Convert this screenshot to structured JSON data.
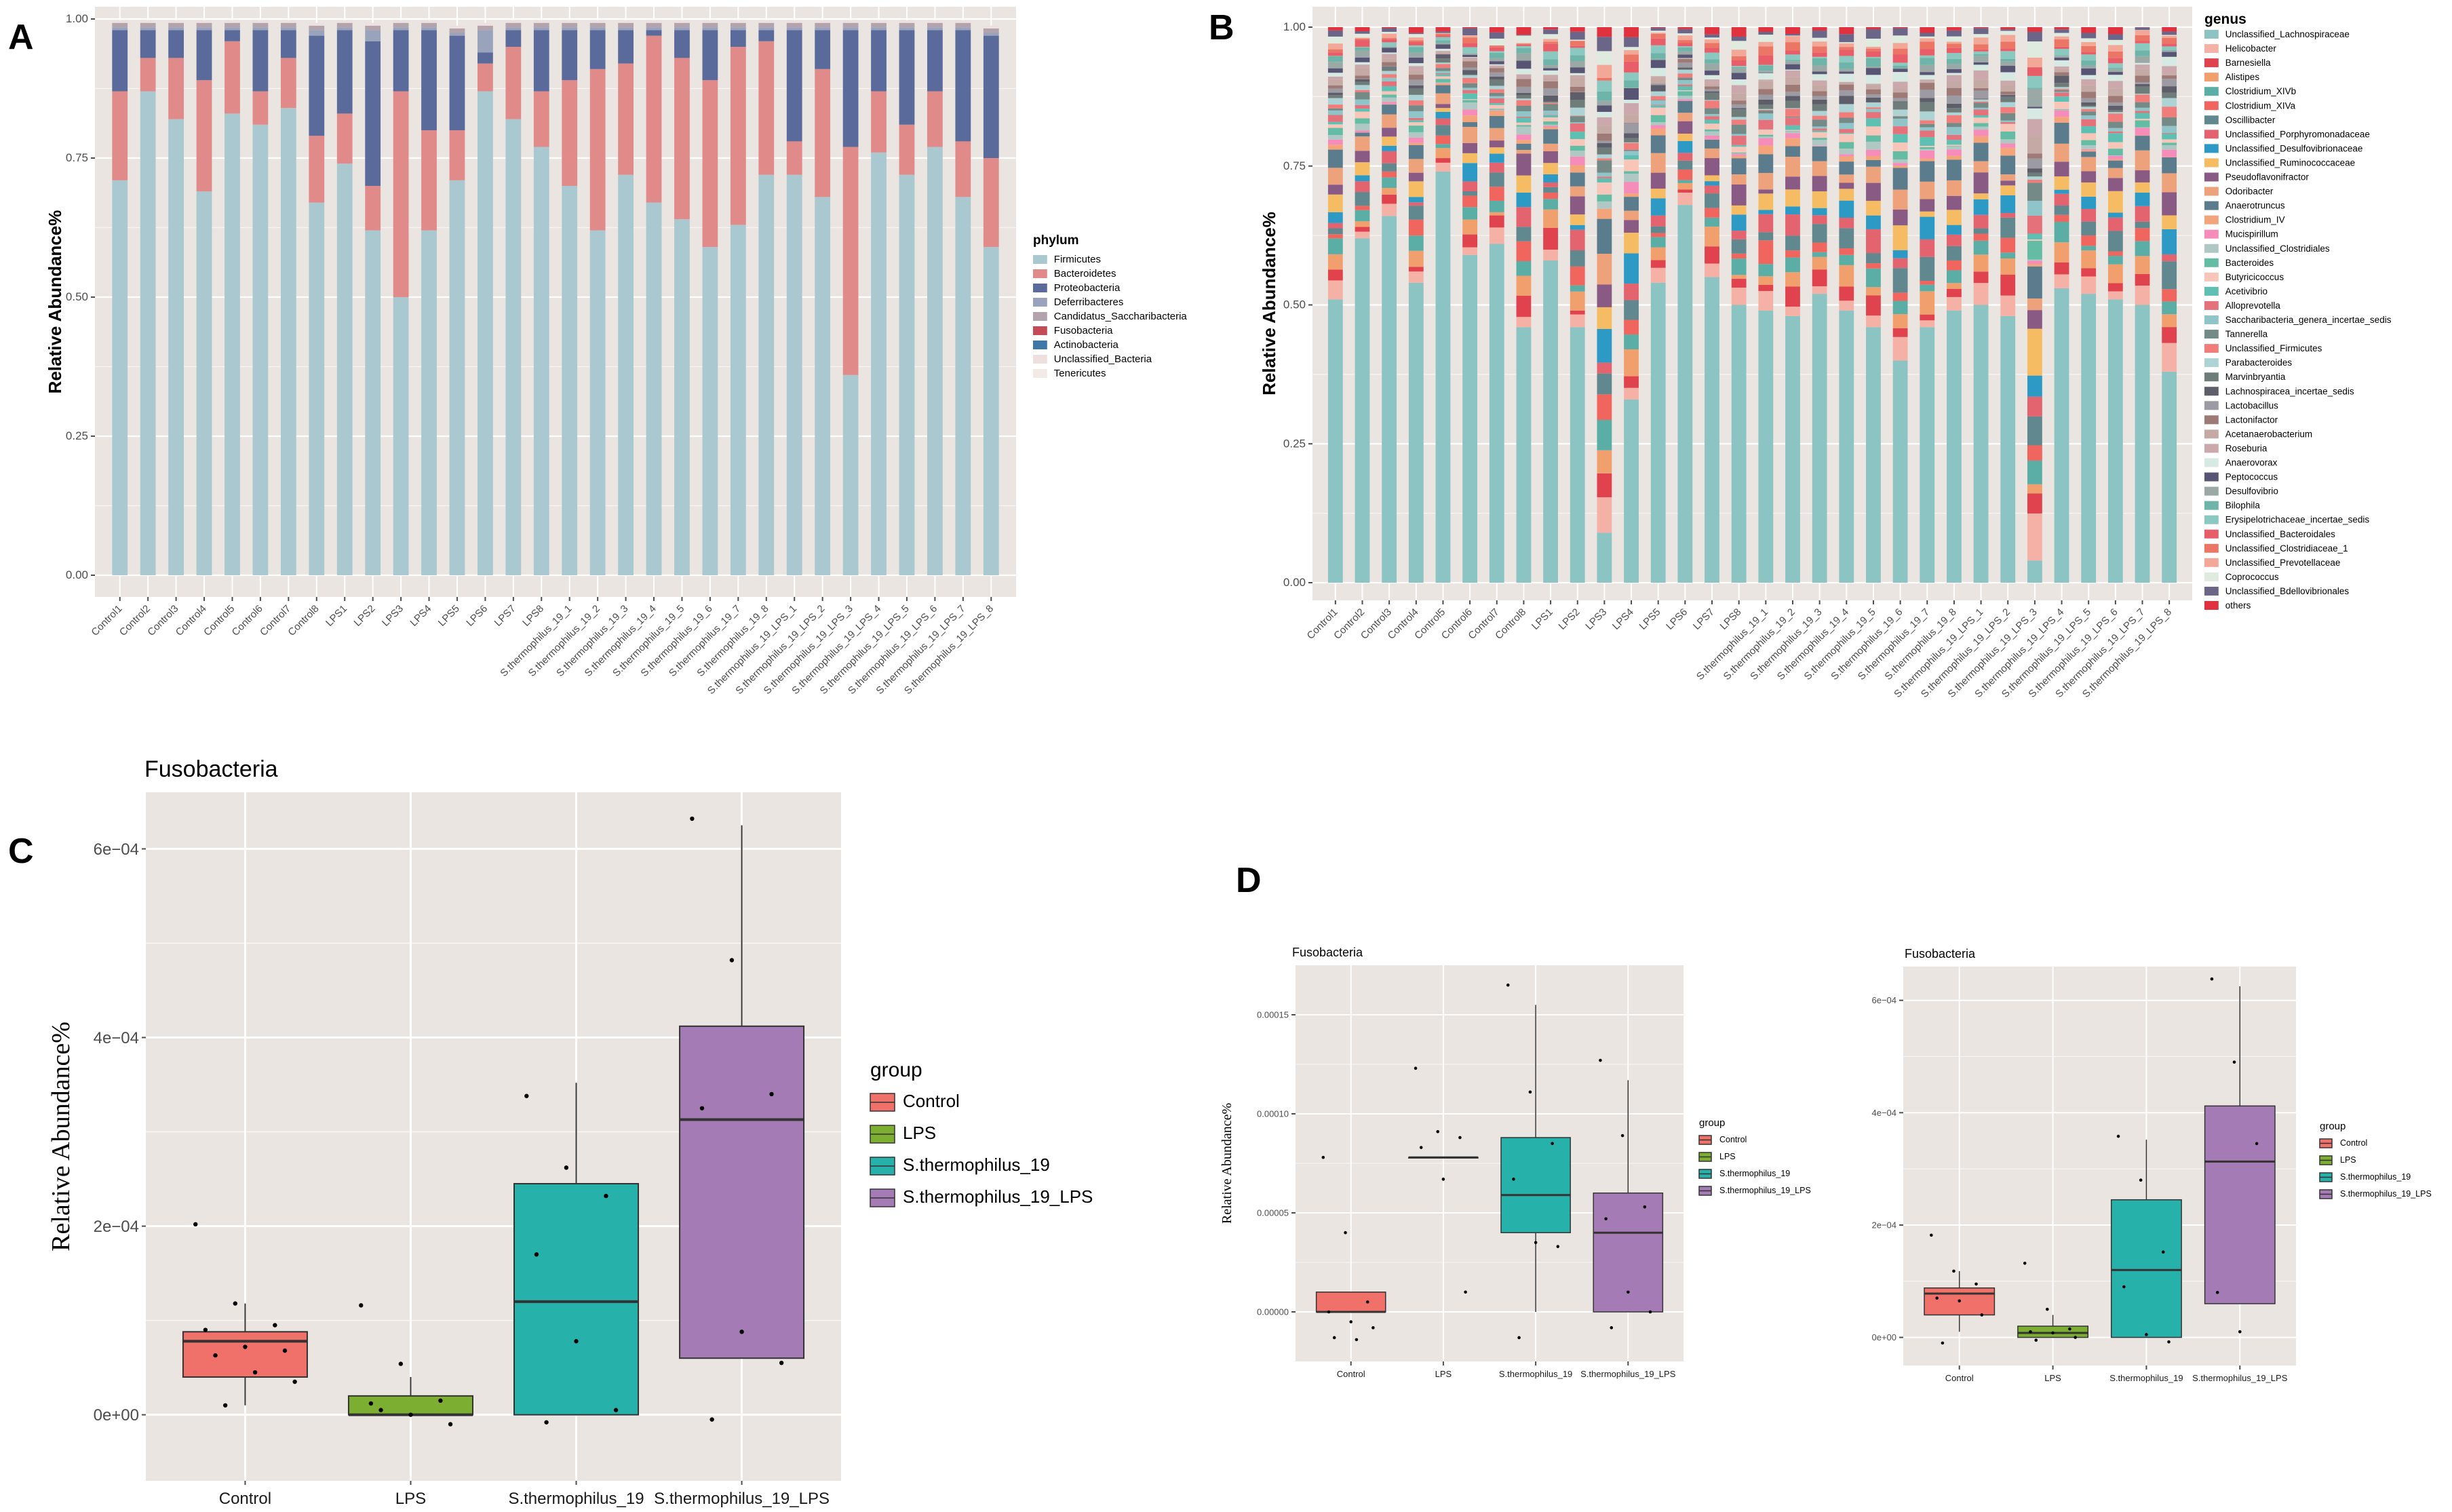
{
  "colors": {
    "panel_bg": "#EBE5E1",
    "grid": "#FFFFFF",
    "axis_text": "#4D4D4D",
    "group_colors": [
      "#F0706A",
      "#7CAE31",
      "#27B1AB",
      "#A47BB5"
    ]
  },
  "chart_data": [
    {
      "panel": "A",
      "type": "bar",
      "stacked": true,
      "title": "",
      "xlabel": "",
      "ylabel": "Relative Abundance%",
      "ylim": [
        0,
        1
      ],
      "yticks": [
        "0.00",
        "0.25",
        "0.50",
        "0.75",
        "1.00"
      ],
      "legend_title": "phylum",
      "categories": [
        "Control1",
        "Control2",
        "Control3",
        "Control4",
        "Control5",
        "Control6",
        "Control7",
        "Control8",
        "LPS1",
        "LPS2",
        "LPS3",
        "LPS4",
        "LPS5",
        "LPS6",
        "LPS7",
        "LPS8",
        "S.thermophilus_19_1",
        "S.thermophilus_19_2",
        "S.thermophilus_19_3",
        "S.thermophilus_19_4",
        "S.thermophilus_19_5",
        "S.thermophilus_19_6",
        "S.thermophilus_19_7",
        "S.thermophilus_19_8",
        "S.thermophilus_19_LPS_1",
        "S.thermophilus_19_LPS_2",
        "S.thermophilus_19_LPS_3",
        "S.thermophilus_19_LPS_4",
        "S.thermophilus_19_LPS_5",
        "S.thermophilus_19_LPS_6",
        "S.thermophilus_19_LPS_7",
        "S.thermophilus_19_LPS_8"
      ],
      "series": [
        {
          "name": "Firmicutes",
          "color": "#A9C8D0",
          "values": [
            0.71,
            0.87,
            0.82,
            0.69,
            0.83,
            0.81,
            0.84,
            0.67,
            0.74,
            0.62,
            0.5,
            0.62,
            0.71,
            0.87,
            0.82,
            0.77,
            0.7,
            0.62,
            0.72,
            0.67,
            0.64,
            0.59,
            0.63,
            0.72,
            0.72,
            0.68,
            0.36,
            0.76,
            0.72,
            0.77,
            0.68,
            0.59
          ]
        },
        {
          "name": "Bacteroidetes",
          "color": "#E08A8A",
          "values": [
            0.16,
            0.06,
            0.11,
            0.2,
            0.13,
            0.06,
            0.09,
            0.12,
            0.09,
            0.08,
            0.37,
            0.18,
            0.09,
            0.05,
            0.13,
            0.1,
            0.19,
            0.29,
            0.2,
            0.3,
            0.29,
            0.3,
            0.32,
            0.24,
            0.06,
            0.23,
            0.41,
            0.11,
            0.09,
            0.1,
            0.1,
            0.16
          ]
        },
        {
          "name": "Proteobacteria",
          "color": "#5A6A9A",
          "values": [
            0.11,
            0.05,
            0.05,
            0.09,
            0.02,
            0.11,
            0.05,
            0.18,
            0.15,
            0.26,
            0.11,
            0.18,
            0.17,
            0.02,
            0.03,
            0.11,
            0.09,
            0.07,
            0.06,
            0.01,
            0.05,
            0.09,
            0.03,
            0.02,
            0.2,
            0.07,
            0.21,
            0.11,
            0.17,
            0.11,
            0.2,
            0.22
          ]
        },
        {
          "name": "Deferribacteres",
          "color": "#9AA3BC",
          "values": [
            0.005,
            0.005,
            0.005,
            0.005,
            0.005,
            0.005,
            0.005,
            0.01,
            0.005,
            0.02,
            0.005,
            0.005,
            0.005,
            0.04,
            0.005,
            0.005,
            0.005,
            0.005,
            0.005,
            0.005,
            0.005,
            0.005,
            0.005,
            0.005,
            0.005,
            0.005,
            0.005,
            0.005,
            0.005,
            0.005,
            0.005,
            0.005
          ]
        },
        {
          "name": "Candidatus_Saccharibacteria",
          "color": "#B2A3AD",
          "values": [
            0.008,
            0.008,
            0.008,
            0.008,
            0.008,
            0.008,
            0.008,
            0.008,
            0.008,
            0.008,
            0.008,
            0.008,
            0.008,
            0.008,
            0.008,
            0.008,
            0.008,
            0.008,
            0.008,
            0.008,
            0.008,
            0.008,
            0.008,
            0.008,
            0.008,
            0.008,
            0.008,
            0.008,
            0.008,
            0.008,
            0.008,
            0.008
          ]
        },
        {
          "name": "Fusobacteria",
          "color": "#C44A55",
          "values": [
            0,
            0,
            0,
            0,
            0,
            0,
            0,
            0,
            0,
            0,
            0,
            0,
            0,
            0,
            0,
            0,
            0,
            0,
            0,
            0,
            0,
            0,
            0,
            0,
            0,
            0,
            0,
            0,
            0,
            0,
            0,
            0
          ]
        },
        {
          "name": "Actinobacteria",
          "color": "#3E78A8",
          "values": [
            0,
            0,
            0,
            0,
            0,
            0,
            0,
            0,
            0,
            0,
            0,
            0,
            0,
            0,
            0,
            0,
            0,
            0,
            0,
            0,
            0,
            0,
            0,
            0,
            0,
            0,
            0,
            0,
            0,
            0,
            0,
            0
          ]
        },
        {
          "name": "Unclassified_Bacteria",
          "color": "#EDE0DE",
          "values": [
            0.005,
            0.005,
            0.005,
            0.005,
            0.005,
            0.005,
            0.005,
            0.005,
            0.005,
            0.005,
            0.005,
            0.005,
            0.005,
            0.005,
            0.005,
            0.005,
            0.005,
            0.005,
            0.005,
            0.005,
            0.005,
            0.005,
            0.005,
            0.005,
            0.005,
            0.005,
            0.005,
            0.005,
            0.005,
            0.005,
            0.005,
            0.005
          ]
        },
        {
          "name": "Tenericutes",
          "color": "#F3EAE8",
          "values": [
            0,
            0,
            0,
            0,
            0,
            0,
            0,
            0,
            0,
            0,
            0,
            0,
            0,
            0,
            0,
            0,
            0,
            0,
            0,
            0,
            0,
            0,
            0,
            0,
            0,
            0,
            0,
            0,
            0,
            0,
            0,
            0
          ]
        }
      ]
    },
    {
      "panel": "B",
      "type": "bar",
      "stacked": true,
      "title": "",
      "xlabel": "",
      "ylabel": "Relative Abundance%",
      "ylim": [
        0,
        1
      ],
      "yticks": [
        "0.00",
        "0.25",
        "0.50",
        "0.75",
        "1.00"
      ],
      "legend_title": "genus",
      "categories": [
        "Control1",
        "Control2",
        "Control3",
        "Control4",
        "Control5",
        "Control6",
        "Control7",
        "Control8",
        "LPS1",
        "LPS2",
        "LPS3",
        "LPS4",
        "LPS5",
        "LPS6",
        "LPS7",
        "LPS8",
        "S.thermophilus_19_1",
        "S.thermophilus_19_2",
        "S.thermophilus_19_3",
        "S.thermophilus_19_4",
        "S.thermophilus_19_5",
        "S.thermophilus_19_6",
        "S.thermophilus_19_7",
        "S.thermophilus_19_8",
        "S.thermophilus_19_LPS_1",
        "S.thermophilus_19_LPS_2",
        "S.thermophilus_19_LPS_3",
        "S.thermophilus_19_LPS_4",
        "S.thermophilus_19_LPS_5",
        "S.thermophilus_19_LPS_6",
        "S.thermophilus_19_LPS_7",
        "S.thermophilus_19_LPS_8"
      ],
      "genus_labels": [
        "Unclassified_Lachnospiraceae",
        "Helicobacter",
        "Barnesiella",
        "Alistipes",
        "Clostridium_XIVb",
        "Clostridium_XIVa",
        "Oscillibacter",
        "Unclassified_Porphyromonadaceae",
        "Unclassified_Desulfovibrionaceae",
        "Unclassified_Ruminococcaceae",
        "Pseudoflavonifractor",
        "Odoribacter",
        "Anaerotruncus",
        "Clostridium_IV",
        "Mucispirillum",
        "Unclassified_Clostridiales",
        "Bacteroides",
        "Butyricicoccus",
        "Acetivibrio",
        "Alloprevotella",
        "Saccharibacteria_genera_incertae_sedis",
        "Tannerella",
        "Unclassified_Firmicutes",
        "Parabacteroides",
        "Marvinbryantia",
        "Lachnospiracea_incertae_sedis",
        "Lactobacillus",
        "Lactonifactor",
        "Acetanaerobacterium",
        "Roseburia",
        "Anaerovorax",
        "Peptococcus",
        "Desulfovibrio",
        "Bilophila",
        "Erysipelotrichaceae_incertae_sedis",
        "Unclassified_Bacteroidales",
        "Unclassified_Clostridiaceae_1",
        "Unclassified_Prevotellaceae",
        "Coprococcus",
        "Unclassified_Bdellovibrionales",
        "others"
      ],
      "genus_colors": [
        "#8CC3C3",
        "#F5B1A6",
        "#E0434E",
        "#F19F6C",
        "#5AAEA5",
        "#F0665F",
        "#60888E",
        "#E3636F",
        "#2D9AC6",
        "#F6BC63",
        "#895B84",
        "#EEA27B",
        "#5A7C8C",
        "#F3A47A",
        "#F58CB9",
        "#AFC8C4",
        "#64BCA4",
        "#F7C6B8",
        "#5EC0B3",
        "#E5717A",
        "#8FC4C9",
        "#738A87",
        "#F07D7A",
        "#ADD3D4",
        "#6E7C7A",
        "#5E5E6B",
        "#9C9AA3",
        "#9D7A76",
        "#C4A9A4",
        "#CBA8AC",
        "#D6E9E2",
        "#575573",
        "#9AA9A6",
        "#6EB4A8",
        "#8AC8C0",
        "#E85D68",
        "#EB7665",
        "#F3A797",
        "#E0EBE0",
        "#6B6688",
        "#E0313F"
      ],
      "main_genus_values": [
        0.51,
        0.62,
        0.66,
        0.54,
        0.74,
        0.59,
        0.61,
        0.46,
        0.58,
        0.46,
        0.09,
        0.33,
        0.54,
        0.68,
        0.55,
        0.5,
        0.49,
        0.48,
        0.52,
        0.49,
        0.46,
        0.4,
        0.46,
        0.49,
        0.5,
        0.48,
        0.04,
        0.53,
        0.52,
        0.51,
        0.5,
        0.38
      ]
    },
    {
      "panel": "C",
      "type": "box",
      "title": "Fusobacteria",
      "xlabel": "",
      "ylabel": "Relative Abundance%",
      "ylim": [
        -7e-05,
        0.00066
      ],
      "yticks": [
        {
          "v": 0,
          "t": "0e+00"
        },
        {
          "v": 0.0002,
          "t": "2e−04"
        },
        {
          "v": 0.0004,
          "t": "4e−04"
        },
        {
          "v": 0.0006,
          "t": "6e−04"
        }
      ],
      "legend_title": "group",
      "categories": [
        "Control",
        "LPS",
        "S.thermophilus_19",
        "S.thermophilus_19_LPS"
      ],
      "boxes": [
        {
          "name": "Control",
          "min": 1e-05,
          "q1": 4e-05,
          "median": 7.8e-05,
          "q3": 8.8e-05,
          "max": 0.000118,
          "points": [
            0.000202,
            0.000118,
            9.5e-05,
            9e-05,
            7.2e-05,
            6.8e-05,
            6.3e-05,
            4.5e-05,
            3.5e-05,
            1e-05
          ]
        },
        {
          "name": "LPS",
          "min": 0,
          "q1": 0,
          "median": 0,
          "q3": 2e-05,
          "max": 4e-05,
          "points": [
            0.000116,
            5.4e-05,
            1.5e-05,
            1.2e-05,
            0,
            -1e-05,
            5e-06
          ]
        },
        {
          "name": "S.thermophilus_19",
          "min": 0,
          "q1": 0,
          "median": 0.00012,
          "q3": 0.000245,
          "max": 0.000352,
          "points": [
            0.000338,
            0.000262,
            0.000232,
            0.00017,
            7.8e-05,
            5e-06,
            -8e-06
          ]
        },
        {
          "name": "S.thermophilus_19_LPS",
          "min": 6e-05,
          "q1": 6e-05,
          "median": 0.000313,
          "q3": 0.000412,
          "max": 0.000625,
          "points": [
            0.000632,
            0.000482,
            0.00034,
            0.000325,
            8.8e-05,
            5.5e-05,
            -5e-06
          ]
        }
      ]
    },
    {
      "panel": "D-left",
      "type": "box",
      "title": "Fusobacteria",
      "xlabel": "",
      "ylabel": "Relative Abundance%",
      "ylim": [
        -2.5e-05,
        0.000175
      ],
      "yticks": [
        {
          "v": 0,
          "t": "0.00000"
        },
        {
          "v": 5e-05,
          "t": "0.00005"
        },
        {
          "v": 0.0001,
          "t": "0.00010"
        },
        {
          "v": 0.00015,
          "t": "0.00015"
        }
      ],
      "legend_title": "group",
      "categories": [
        "Control",
        "LPS",
        "S.thermophilus_19",
        "S.thermophilus_19_LPS"
      ],
      "boxes": [
        {
          "name": "Control",
          "min": 0,
          "q1": 0,
          "median": 0,
          "q3": 1e-05,
          "max": 1e-05,
          "points": [
            7.8e-05,
            4e-05,
            5e-06,
            0,
            -5e-06,
            -8e-06,
            -1.3e-05,
            -1.4e-05
          ]
        },
        {
          "name": "LPS",
          "min": 7.8e-05,
          "q1": 7.8e-05,
          "median": 7.8e-05,
          "q3": 7.8e-05,
          "max": 7.8e-05,
          "points": [
            0.000123,
            9.1e-05,
            8.8e-05,
            8.3e-05,
            6.7e-05,
            1e-05
          ]
        },
        {
          "name": "S.thermophilus_19",
          "min": 0,
          "q1": 4e-05,
          "median": 5.9e-05,
          "q3": 8.8e-05,
          "max": 0.000155,
          "points": [
            0.000165,
            0.000111,
            8.5e-05,
            6.7e-05,
            3.5e-05,
            3.3e-05,
            -1.3e-05
          ]
        },
        {
          "name": "S.thermophilus_19_LPS",
          "min": 0,
          "q1": 0,
          "median": 4e-05,
          "q3": 6e-05,
          "max": 0.000117,
          "points": [
            0.000127,
            8.9e-05,
            5.3e-05,
            4.7e-05,
            1e-05,
            0,
            -8e-06
          ]
        }
      ]
    },
    {
      "panel": "D-right",
      "type": "box",
      "title": "Fusobacteria",
      "xlabel": "",
      "ylabel": "",
      "ylim": [
        -5e-05,
        0.00066
      ],
      "yticks": [
        {
          "v": 0,
          "t": "0e+00"
        },
        {
          "v": 0.0002,
          "t": "2e−04"
        },
        {
          "v": 0.0004,
          "t": "4e−04"
        },
        {
          "v": 0.0006,
          "t": "6e−04"
        }
      ],
      "legend_title": "group",
      "categories": [
        "Control",
        "LPS",
        "S.thermophilus_19",
        "S.thermophilus_19_LPS"
      ],
      "boxes": [
        {
          "name": "Control",
          "min": 1e-05,
          "q1": 4e-05,
          "median": 7.8e-05,
          "q3": 8.8e-05,
          "max": 0.000118,
          "points": [
            0.000182,
            0.000118,
            9.5e-05,
            7e-05,
            6.5e-05,
            4e-05,
            -1e-05
          ]
        },
        {
          "name": "LPS",
          "min": 0,
          "q1": 0,
          "median": 8e-06,
          "q3": 2e-05,
          "max": 4e-05,
          "points": [
            0.000132,
            5e-05,
            1.5e-05,
            1e-05,
            8e-06,
            0,
            -5e-06
          ]
        },
        {
          "name": "S.thermophilus_19",
          "min": 0,
          "q1": 0,
          "median": 0.00012,
          "q3": 0.000245,
          "max": 0.000352,
          "points": [
            0.000358,
            0.00028,
            0.000152,
            9e-05,
            5e-06,
            -8e-06
          ]
        },
        {
          "name": "S.thermophilus_19_LPS",
          "min": 6e-05,
          "q1": 6e-05,
          "median": 0.000313,
          "q3": 0.000412,
          "max": 0.000625,
          "points": [
            0.000638,
            0.00049,
            0.000345,
            8e-05,
            1e-05
          ]
        }
      ]
    }
  ],
  "panel_labels": [
    "A",
    "B",
    "C",
    "D"
  ]
}
